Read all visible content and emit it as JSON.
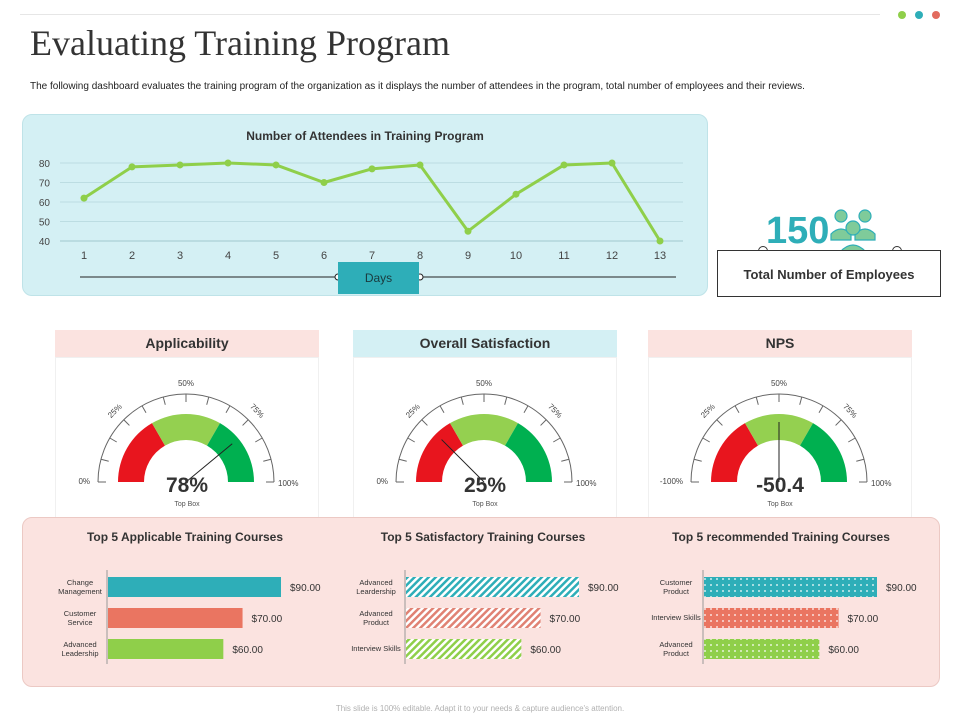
{
  "header": {
    "title": "Evaluating Training Program",
    "description": "The following dashboard evaluates the training program of the organization as it displays the number of attendees in the program, total number of employees and their reviews.",
    "accent_dots": [
      "#8fcf4a",
      "#2eaeb8",
      "#e26b5e"
    ]
  },
  "chart_data": [
    {
      "type": "line",
      "title": "Number of Attendees in Training Program",
      "xlabel": "Days",
      "x": [
        1,
        2,
        3,
        4,
        5,
        6,
        7,
        8,
        9,
        10,
        11,
        12,
        13
      ],
      "values": [
        62,
        78,
        79,
        80,
        79,
        70,
        77,
        79,
        45,
        64,
        79,
        80,
        40
      ],
      "ylim": [
        40,
        80
      ],
      "yticks": [
        40,
        50,
        60,
        70,
        80
      ],
      "color": "#8fcf4a",
      "grid": true
    },
    {
      "type": "bar",
      "title": "Top 5 Applicable Training Courses",
      "categories": [
        "Change Management",
        "Customer Service",
        "Advanced Leadership"
      ],
      "values": [
        90,
        70,
        60
      ],
      "labels": [
        "$90.00",
        "$70.00",
        "$60.00"
      ],
      "colors": [
        "#2eaeb8",
        "#ea7561",
        "#8fcf4a"
      ]
    },
    {
      "type": "bar",
      "title": "Top 5 Satisfactory Training Courses",
      "categories": [
        "Advanced Leardership",
        "Advanced Product",
        "Interview Skills"
      ],
      "values": [
        90,
        70,
        60
      ],
      "labels": [
        "$90.00",
        "$70.00",
        "$60.00"
      ],
      "colors": [
        "#2eaeb8",
        "#e08274",
        "#8fcf4a"
      ]
    },
    {
      "type": "bar",
      "title": "Top 5 recommended Training Courses",
      "categories": [
        "Customer Product",
        "Interview Skills",
        "Advanced Product"
      ],
      "values": [
        90,
        70,
        60
      ],
      "labels": [
        "$90.00",
        "$70.00",
        "$60.00"
      ],
      "colors": [
        "#2eaeb8",
        "#ea7561",
        "#8fcf4a"
      ]
    }
  ],
  "employees": {
    "count": "150",
    "label": "Total Number of Employees",
    "icon": "people-group-icon"
  },
  "gauges": [
    {
      "title": "Applicability",
      "value": "78%",
      "fraction": 0.78,
      "sub": "Top Box",
      "labels": {
        "min": "0%",
        "q1": "25%",
        "mid": "50%",
        "q3": "75%",
        "max": "100%"
      },
      "head_color": "#fbe3e0"
    },
    {
      "title": "Overall Satisfaction",
      "value": "25%",
      "fraction": 0.25,
      "sub": "Top Box",
      "labels": {
        "min": "0%",
        "q1": "25%",
        "mid": "50%",
        "q3": "75%",
        "max": "100%"
      },
      "head_color": "#d4f0f4"
    },
    {
      "title": "NPS",
      "value": "-50.4",
      "fraction": 0.5,
      "sub": "Top Box",
      "labels": {
        "min": "-100%",
        "q1": "25%",
        "mid": "50%",
        "q3": "75%",
        "max": "100%"
      },
      "head_color": "#fbe3e0"
    }
  ],
  "gauge_colors": [
    "#e8151e",
    "#94d050",
    "#00b050"
  ],
  "footer": "This slide is 100% editable. Adapt it to your needs & capture audience's attention."
}
